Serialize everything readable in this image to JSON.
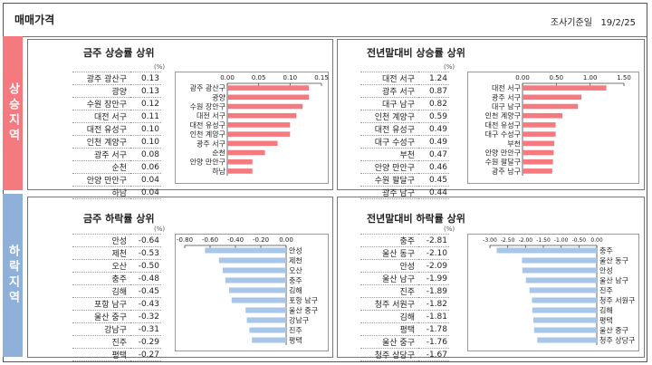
{
  "header": {
    "title": "매매가격",
    "date_label": "조사기준일",
    "date": "19/2/25"
  },
  "bands": {
    "up": "상승지역",
    "down": "하락지역"
  },
  "unit": "(%)",
  "colors": {
    "up_bar": "#f47a80",
    "down_bar": "#a8c6e8",
    "up_band": "#f47a80",
    "down_band": "#8fb0d9"
  },
  "chart_data": [
    {
      "type": "bar",
      "title": "금주 상승률 상위",
      "categories": [
        "광주 광산구",
        "광양",
        "수원 장안구",
        "대전 서구",
        "대전 유성구",
        "인천 계양구",
        "광주 서구",
        "순천",
        "안양 만안구",
        "하남"
      ],
      "values": [
        0.13,
        0.13,
        0.12,
        0.11,
        0.1,
        0.1,
        0.08,
        0.06,
        0.04,
        0.04
      ],
      "display": [
        "0.13",
        "0.13",
        "0.12",
        "0.11",
        "0.10",
        "0.10",
        "0.08",
        "0.06",
        "0.04",
        "0.04"
      ],
      "xlim": [
        0,
        0.15
      ],
      "ticks": [
        "0.00",
        "0.05",
        "0.10",
        "0.15"
      ]
    },
    {
      "type": "bar",
      "title": "전년말대비 상승률 상위",
      "categories": [
        "대전 서구",
        "광주 서구",
        "대구 남구",
        "인천 계양구",
        "대전 유성구",
        "대구 수성구",
        "부천",
        "안양 만안구",
        "수원 팔달구",
        "광주 남구"
      ],
      "values": [
        1.24,
        0.87,
        0.82,
        0.59,
        0.49,
        0.49,
        0.47,
        0.46,
        0.45,
        0.44
      ],
      "display": [
        "1.24",
        "0.87",
        "0.82",
        "0.59",
        "0.49",
        "0.49",
        "0.47",
        "0.46",
        "0.45",
        "0.44"
      ],
      "xlim": [
        0,
        1.5
      ],
      "ticks": [
        "0.00",
        "0.50",
        "1.00",
        "1.50"
      ]
    },
    {
      "type": "bar",
      "title": "금주 하락률 상위",
      "categories": [
        "안성",
        "제천",
        "오산",
        "충주",
        "김해",
        "포항 남구",
        "울산 중구",
        "강남구",
        "진주",
        "평택"
      ],
      "values": [
        -0.64,
        -0.53,
        -0.5,
        -0.48,
        -0.45,
        -0.43,
        -0.32,
        -0.31,
        -0.29,
        -0.27
      ],
      "display": [
        "-0.64",
        "-0.53",
        "-0.50",
        "-0.48",
        "-0.45",
        "-0.43",
        "-0.32",
        "-0.31",
        "-0.29",
        "-0.27"
      ],
      "xlim": [
        -0.8,
        0
      ],
      "ticks": [
        "-0.80",
        "-0.60",
        "-0.40",
        "-0.20",
        "0.00"
      ]
    },
    {
      "type": "bar",
      "title": "전년말대비 하락률 상위",
      "categories": [
        "충주",
        "울산 동구",
        "안성",
        "울산 남구",
        "진주",
        "청주 서원구",
        "김해",
        "평택",
        "울산 중구",
        "청주 상당구"
      ],
      "values": [
        -2.81,
        -2.1,
        -2.09,
        -1.99,
        -1.89,
        -1.82,
        -1.81,
        -1.78,
        -1.76,
        -1.67
      ],
      "display": [
        "-2.81",
        "-2.10",
        "-2.09",
        "-1.99",
        "-1.89",
        "-1.82",
        "-1.81",
        "-1.78",
        "-1.76",
        "-1.67"
      ],
      "xlim": [
        -3.0,
        0
      ],
      "ticks": [
        "-3.00",
        "-2.50",
        "-2.00",
        "-1.50",
        "-1.00",
        "-0.50",
        "0.00"
      ]
    }
  ]
}
